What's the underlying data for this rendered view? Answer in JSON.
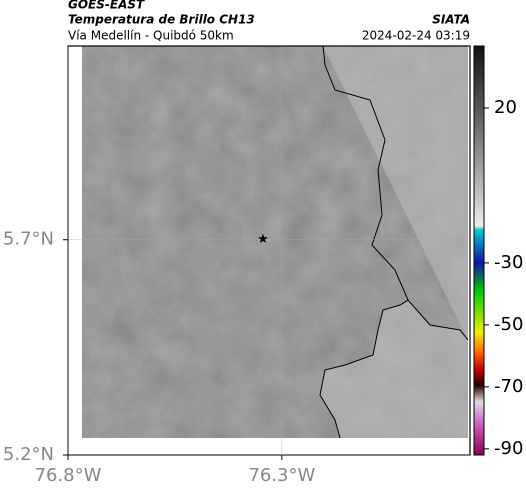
{
  "header": {
    "satellite": "GOES-EAST",
    "product": "Temperatura de Brillo CH13",
    "route": "Vía Medellín - Quibdó 50km",
    "source": "SIATA",
    "datetime": "2024-02-24 03:19"
  },
  "map": {
    "xlim": [
      -76.8,
      -75.86
    ],
    "ylim": [
      5.2,
      6.15
    ],
    "xticks": [
      {
        "value": -76.8,
        "label": "76.8°W"
      },
      {
        "value": -76.3,
        "label": "76.3°W"
      }
    ],
    "yticks": [
      {
        "value": 5.7,
        "label": "5.7°N"
      },
      {
        "value": 5.2,
        "label": "5.2°N"
      }
    ],
    "grid": true,
    "marker": {
      "lon": -76.344,
      "lat": 5.7
    },
    "colorbar": {
      "lim": [
        -92,
        40
      ],
      "ticks": [
        20,
        -30,
        -50,
        -70,
        -90
      ]
    }
  }
}
